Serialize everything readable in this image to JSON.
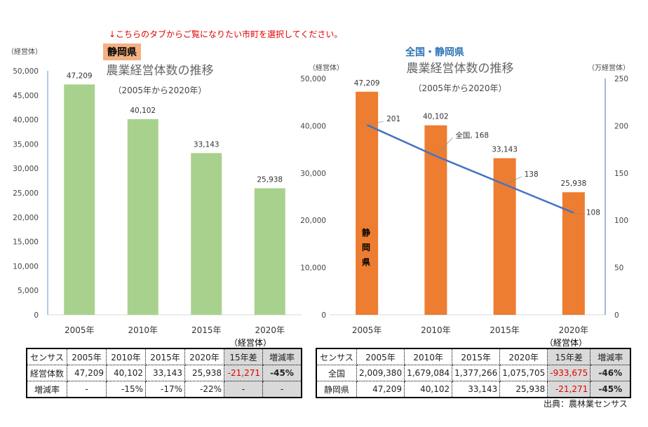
{
  "note": "↓こちらのタブからご覧になりたい市町を選択してください。",
  "left_tag": "静岡県",
  "right_tag": "全国・静岡県",
  "chart_data": [
    {
      "type": "bar",
      "title": "農業経営体数の推移",
      "subtitle": "（2005年から2020年）",
      "ylabel": "（経営体）",
      "categories": [
        "2005年",
        "2010年",
        "2015年",
        "2020年"
      ],
      "values": [
        47209,
        40102,
        33143,
        25938
      ],
      "data_labels": [
        "47,209",
        "40,102",
        "33,143",
        "25,938"
      ],
      "ylim": [
        0,
        50000
      ],
      "yticks": [
        "0",
        "5,000",
        "10,000",
        "15,000",
        "20,000",
        "25,000",
        "30,000",
        "35,000",
        "40,000",
        "45,000",
        "50,000"
      ],
      "grid": false,
      "color": "#a9d18e"
    },
    {
      "type": "bar+line",
      "title": "農業経営体数の推移",
      "subtitle": "（2005年から2020年）",
      "ylabel": "（経営体）",
      "y2label": "（万経営体）",
      "categories": [
        "2005年",
        "2010年",
        "2015年",
        "2020年"
      ],
      "series": [
        {
          "name": "静岡県",
          "type": "bar",
          "axis": "left",
          "values": [
            47209,
            40102,
            33143,
            25938
          ],
          "data_labels": [
            "47,209",
            "40,102",
            "33,143",
            "25,938"
          ],
          "color": "#ed7d31"
        },
        {
          "name": "全国",
          "type": "line",
          "axis": "right",
          "values": [
            201,
            168,
            138,
            108
          ],
          "data_labels": [
            "201",
            "全国, 168",
            "138",
            "108"
          ],
          "color": "#4472c4"
        }
      ],
      "ylim": [
        0,
        50000
      ],
      "y2lim": [
        0,
        250
      ],
      "yticks": [
        "0",
        "10,000",
        "20,000",
        "30,000",
        "40,000",
        "50,000"
      ],
      "y2ticks": [
        "0",
        "50",
        "100",
        "150",
        "200",
        "250"
      ],
      "bar_label": "静岡県",
      "grid": false
    }
  ],
  "unit_label": "（経営体）",
  "left_table": {
    "header": [
      "センサス",
      "2005年",
      "2010年",
      "2015年",
      "2020年",
      "15年差",
      "増減率"
    ],
    "rows": [
      [
        "経営体数",
        "47,209",
        "40,102",
        "33,143",
        "25,938",
        "-21,271",
        "-45%"
      ],
      [
        "増減率",
        "-",
        "-15%",
        "-17%",
        "-22%",
        "-",
        "-"
      ]
    ]
  },
  "right_table": {
    "header": [
      "センサス",
      "2005年",
      "2010年",
      "2015年",
      "2020年",
      "15年差",
      "増減率"
    ],
    "rows": [
      [
        "全国",
        "2,009,380",
        "1,679,084",
        "1,377,266",
        "1,075,705",
        "-933,675",
        "-46%"
      ],
      [
        "静岡県",
        "47,209",
        "40,102",
        "33,143",
        "25,938",
        "-21,271",
        "-45%"
      ]
    ]
  },
  "source": "出典：農林業センサス"
}
